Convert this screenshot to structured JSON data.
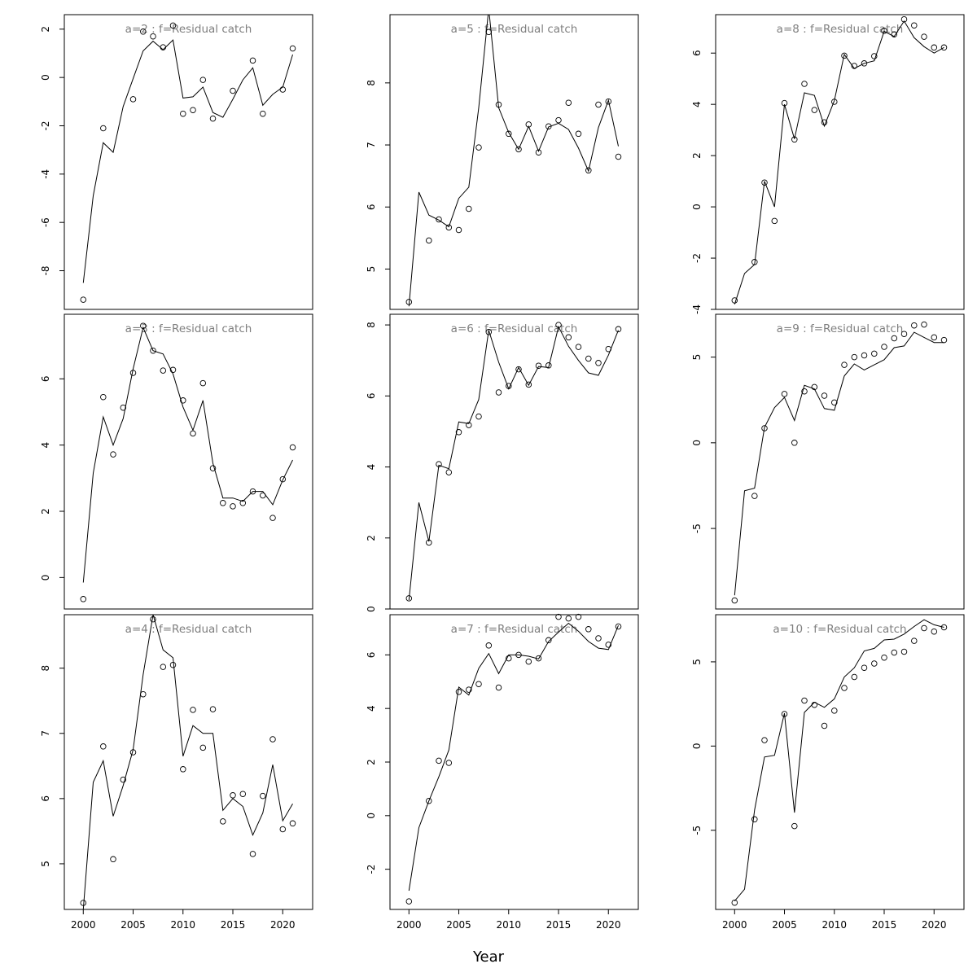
{
  "figure": {
    "xlabel": "Year",
    "title_color": "#7f7f7f",
    "line_color": "#000000",
    "point_color": "#000000"
  },
  "chart_data": [
    {
      "type": "scatter+line",
      "title": "a=2  :  f=Residual catch",
      "x": [
        2000,
        2001,
        2002,
        2003,
        2004,
        2005,
        2006,
        2007,
        2008,
        2009,
        2010,
        2011,
        2012,
        2013,
        2014,
        2015,
        2016,
        2017,
        2018,
        2019,
        2020,
        2021
      ],
      "observed": [
        -9.2,
        null,
        -2.1,
        null,
        null,
        -0.9,
        1.9,
        1.7,
        1.25,
        2.15,
        -1.5,
        -1.35,
        -0.1,
        -1.7,
        null,
        -0.55,
        null,
        0.7,
        -1.5,
        null,
        -0.5,
        1.2
      ],
      "fitted": [
        -8.5,
        -4.9,
        -2.7,
        -3.1,
        -1.2,
        -0.05,
        1.1,
        1.5,
        1.15,
        1.55,
        -0.85,
        -0.8,
        -0.4,
        -1.45,
        -1.65,
        -0.9,
        -0.1,
        0.4,
        -1.15,
        -0.7,
        -0.4,
        0.95
      ],
      "xlim": [
        1998.1,
        2023.0
      ],
      "ylim": [
        -9.6,
        2.6
      ],
      "xticks": [
        2000,
        2005,
        2010,
        2015,
        2020
      ],
      "yticks": [
        -8,
        -6,
        -4,
        -2,
        0,
        2
      ],
      "show_x_ticks": false
    },
    {
      "type": "scatter+line",
      "title": "a=3  :  f=Residual catch",
      "x": [
        2000,
        2001,
        2002,
        2003,
        2004,
        2005,
        2006,
        2007,
        2008,
        2009,
        2010,
        2011,
        2012,
        2013,
        2014,
        2015,
        2016,
        2017,
        2018,
        2019,
        2020,
        2021
      ],
      "observed": [
        -0.65,
        null,
        5.45,
        3.72,
        5.13,
        6.18,
        7.6,
        6.85,
        6.25,
        6.27,
        5.35,
        4.35,
        5.87,
        3.3,
        2.25,
        2.15,
        2.25,
        2.6,
        2.48,
        1.8,
        2.97,
        3.93
      ],
      "fitted": [
        -0.15,
        3.15,
        4.85,
        4.0,
        4.8,
        6.3,
        7.55,
        6.85,
        6.75,
        6.15,
        5.15,
        4.45,
        5.35,
        3.45,
        2.4,
        2.4,
        2.3,
        2.6,
        2.6,
        2.2,
        2.95,
        3.55
      ],
      "xlim": [
        1998.1,
        2023.0
      ],
      "ylim": [
        -0.95,
        7.95
      ],
      "xticks": [
        2000,
        2005,
        2010,
        2015,
        2020
      ],
      "yticks": [
        0,
        2,
        4,
        6
      ],
      "show_x_ticks": false
    },
    {
      "type": "scatter+line",
      "title": "a=4  :  f=Residual catch",
      "x": [
        2000,
        2001,
        2002,
        2003,
        2004,
        2005,
        2006,
        2007,
        2008,
        2009,
        2010,
        2011,
        2012,
        2013,
        2014,
        2015,
        2016,
        2017,
        2018,
        2019,
        2020,
        2021
      ],
      "observed": [
        4.4,
        null,
        6.8,
        5.07,
        6.29,
        6.71,
        7.6,
        8.75,
        8.02,
        8.05,
        6.45,
        7.36,
        6.78,
        7.37,
        5.65,
        6.05,
        6.07,
        5.15,
        6.04,
        6.91,
        5.53,
        5.62
      ],
      "fitted": [
        4.3,
        6.25,
        6.58,
        5.73,
        6.2,
        6.75,
        7.9,
        8.82,
        8.28,
        8.16,
        6.65,
        7.12,
        7.0,
        7.0,
        5.82,
        6.0,
        5.88,
        5.44,
        5.78,
        6.52,
        5.66,
        5.92
      ],
      "xlim": [
        1998.1,
        2023.0
      ],
      "ylim": [
        4.3,
        8.82
      ],
      "xticks": [
        2000,
        2005,
        2010,
        2015,
        2020
      ],
      "yticks": [
        5,
        6,
        7,
        8
      ],
      "show_x_ticks": true
    },
    {
      "type": "scatter+line",
      "title": "a=5  :  f=Residual catch",
      "x": [
        2000,
        2001,
        2002,
        2003,
        2004,
        2005,
        2006,
        2007,
        2008,
        2009,
        2010,
        2011,
        2012,
        2013,
        2014,
        2015,
        2016,
        2017,
        2018,
        2019,
        2020,
        2021
      ],
      "observed": [
        4.47,
        null,
        5.46,
        5.8,
        5.67,
        5.63,
        5.97,
        6.96,
        8.82,
        7.65,
        7.18,
        6.93,
        7.33,
        6.88,
        7.3,
        7.4,
        7.68,
        7.18,
        6.59,
        7.65,
        7.7,
        6.81
      ],
      "fitted": [
        4.4,
        6.24,
        5.87,
        5.79,
        5.68,
        6.14,
        6.32,
        7.6,
        9.2,
        7.6,
        7.2,
        6.93,
        7.3,
        6.9,
        7.29,
        7.35,
        7.25,
        6.95,
        6.58,
        7.28,
        7.72,
        6.98
      ],
      "xlim": [
        1998.1,
        2023.0
      ],
      "ylim": [
        4.35,
        9.1
      ],
      "xticks": [
        2000,
        2005,
        2010,
        2015,
        2020
      ],
      "yticks": [
        5,
        6,
        7,
        8
      ],
      "show_x_ticks": false
    },
    {
      "type": "scatter+line",
      "title": "a=6  :  f=Residual catch",
      "x": [
        2000,
        2001,
        2002,
        2003,
        2004,
        2005,
        2006,
        2007,
        2008,
        2009,
        2010,
        2011,
        2012,
        2013,
        2014,
        2015,
        2016,
        2017,
        2018,
        2019,
        2020,
        2021
      ],
      "observed": [
        0.3,
        null,
        1.87,
        4.08,
        3.85,
        4.98,
        5.18,
        5.42,
        7.8,
        6.1,
        6.28,
        6.75,
        6.32,
        6.85,
        6.86,
        8.0,
        7.65,
        7.38,
        7.05,
        6.93,
        7.32,
        7.88
      ],
      "fitted": [
        0.25,
        3.0,
        1.9,
        4.05,
        3.95,
        5.27,
        5.22,
        5.9,
        7.85,
        6.95,
        6.2,
        6.8,
        6.3,
        6.83,
        6.8,
        7.95,
        7.4,
        7.0,
        6.65,
        6.58,
        7.15,
        7.85
      ],
      "xlim": [
        1998.1,
        2023.0
      ],
      "ylim": [
        0.0,
        8.3
      ],
      "xticks": [
        2000,
        2005,
        2010,
        2015,
        2020
      ],
      "yticks": [
        0,
        2,
        4,
        6,
        8
      ],
      "show_x_ticks": false
    },
    {
      "type": "scatter+line",
      "title": "a=7  :  f=Residual catch",
      "x": [
        2000,
        2001,
        2002,
        2003,
        2004,
        2005,
        2006,
        2007,
        2008,
        2009,
        2010,
        2011,
        2012,
        2013,
        2014,
        2015,
        2016,
        2017,
        2018,
        2019,
        2020,
        2021
      ],
      "observed": [
        -3.2,
        null,
        0.55,
        2.05,
        1.97,
        4.62,
        4.7,
        4.91,
        6.35,
        4.78,
        5.87,
        6.0,
        5.75,
        5.87,
        6.55,
        7.42,
        7.36,
        7.42,
        6.96,
        6.62,
        6.38,
        7.06
      ],
      "fitted": [
        -2.8,
        -0.45,
        0.55,
        1.45,
        2.45,
        4.8,
        4.5,
        5.5,
        6.05,
        5.3,
        6.0,
        6.0,
        5.95,
        5.85,
        6.5,
        6.85,
        7.18,
        6.88,
        6.5,
        6.25,
        6.2,
        7.1
      ],
      "xlim": [
        1998.1,
        2023.0
      ],
      "ylim": [
        -3.5,
        7.5
      ],
      "xticks": [
        2000,
        2005,
        2010,
        2015,
        2020
      ],
      "yticks": [
        -2,
        0,
        2,
        4,
        6
      ],
      "show_x_ticks": true
    },
    {
      "type": "scatter+line",
      "title": "a=8  :  f=Residual catch",
      "x": [
        2000,
        2001,
        2002,
        2003,
        2004,
        2005,
        2006,
        2007,
        2008,
        2009,
        2010,
        2011,
        2012,
        2013,
        2014,
        2015,
        2016,
        2017,
        2018,
        2019,
        2020,
        2021
      ],
      "observed": [
        -3.65,
        null,
        -2.15,
        0.95,
        -0.55,
        4.05,
        2.63,
        4.8,
        3.78,
        3.3,
        4.1,
        5.9,
        5.5,
        5.6,
        5.88,
        6.87,
        6.73,
        7.32,
        7.08,
        6.64,
        6.22,
        6.22
      ],
      "fitted": [
        -3.8,
        -2.6,
        -2.25,
        1.0,
        0.0,
        4.0,
        2.65,
        4.45,
        4.35,
        3.15,
        4.15,
        5.95,
        5.4,
        5.6,
        5.7,
        6.85,
        6.65,
        7.25,
        6.6,
        6.25,
        6.0,
        6.22
      ],
      "xlim": [
        1998.1,
        2023.0
      ],
      "ylim": [
        -4.0,
        7.5
      ],
      "xticks": [
        2000,
        2005,
        2010,
        2015,
        2020
      ],
      "yticks": [
        -4,
        -2,
        0,
        2,
        4,
        6
      ],
      "show_x_ticks": false
    },
    {
      "type": "scatter+line",
      "title": "a=9  :  f=Residual catch",
      "x": [
        2000,
        2001,
        2002,
        2003,
        2004,
        2005,
        2006,
        2007,
        2008,
        2009,
        2010,
        2011,
        2012,
        2013,
        2014,
        2015,
        2016,
        2017,
        2018,
        2019,
        2020,
        2021
      ],
      "observed": [
        -9.2,
        null,
        -3.1,
        0.85,
        null,
        2.85,
        0.0,
        3.0,
        3.25,
        2.75,
        2.35,
        4.55,
        5.0,
        5.1,
        5.2,
        5.6,
        6.1,
        6.35,
        6.85,
        6.9,
        6.15,
        6.0
      ],
      "fitted": [
        -8.9,
        -2.8,
        -2.65,
        0.9,
        2.05,
        2.65,
        1.3,
        3.35,
        3.15,
        2.0,
        1.9,
        3.9,
        4.6,
        4.25,
        4.55,
        4.85,
        5.55,
        5.65,
        6.45,
        6.15,
        5.85,
        5.85
      ],
      "xlim": [
        1998.1,
        2023.0
      ],
      "ylim": [
        -9.7,
        7.5
      ],
      "xticks": [
        2000,
        2005,
        2010,
        2015,
        2020
      ],
      "yticks": [
        -5,
        0,
        5
      ],
      "show_x_ticks": false
    },
    {
      "type": "scatter+line",
      "title": "a=10  :  f=Residual catch",
      "x": [
        2000,
        2001,
        2002,
        2003,
        2004,
        2005,
        2006,
        2007,
        2008,
        2009,
        2010,
        2011,
        2012,
        2013,
        2014,
        2015,
        2016,
        2017,
        2018,
        2019,
        2020,
        2021
      ],
      "observed": [
        -9.3,
        null,
        -4.35,
        0.35,
        null,
        1.9,
        -4.75,
        2.7,
        2.45,
        1.2,
        2.1,
        3.45,
        4.1,
        4.65,
        4.9,
        5.25,
        5.55,
        5.6,
        6.25,
        7.0,
        6.8,
        7.05
      ],
      "fitted": [
        -9.2,
        -8.5,
        -3.8,
        -0.65,
        -0.55,
        1.95,
        -3.95,
        2.0,
        2.6,
        2.3,
        2.8,
        4.1,
        4.65,
        5.65,
        5.8,
        6.3,
        6.35,
        6.65,
        7.1,
        7.5,
        7.2,
        7.05
      ],
      "xlim": [
        1998.1,
        2023.0
      ],
      "ylim": [
        -9.7,
        7.8
      ],
      "xticks": [
        2000,
        2005,
        2010,
        2015,
        2020
      ],
      "yticks": [
        -5,
        0,
        5
      ],
      "show_x_ticks": true
    }
  ]
}
